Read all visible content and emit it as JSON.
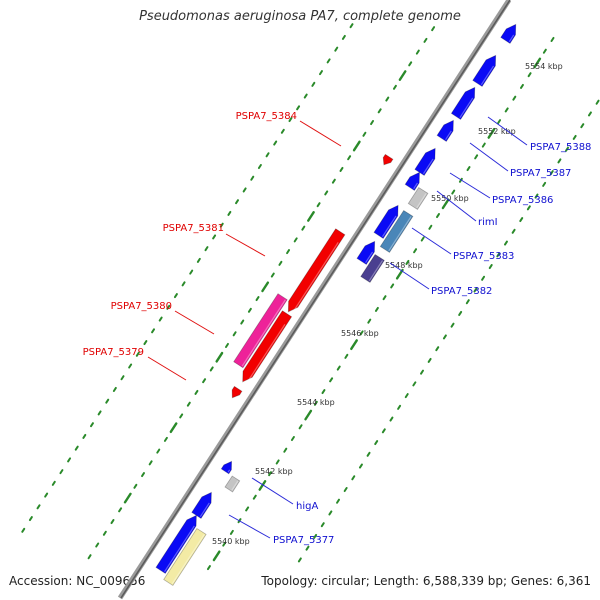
{
  "title": "Pseudomonas aeruginosa PA7, complete genome",
  "accession": "Accession: NC_009656",
  "summary": "Topology: circular; Length: 6,588,339 bp; Genes: 6,361",
  "colors": {
    "backbone": "#888888",
    "forward_gene": "#0a0af5",
    "reverse_gene": "#f20000",
    "forward_label": "#1010d0",
    "reverse_label": "#e00000",
    "tick": "#2a8a2a",
    "grey_gene": "#c4c4c4",
    "steel_gene": "#4a86b8",
    "purple_gene": "#4a3f90",
    "magenta_gene": "#ee2299",
    "yellow_gene": "#f3eba5"
  },
  "scale_labels": [
    "5554 kbp",
    "5552 kbp",
    "5550 kbp",
    "5548 kbp",
    "5546 kbp",
    "5544 kbp",
    "5542 kbp",
    "5540 kbp"
  ],
  "gene_labels": {
    "forward": [
      "PSPA7_5388",
      "PSPA7_5387",
      "PSPA7_5386",
      "rimI",
      "PSPA7_5383",
      "PSPA7_5382",
      "higA",
      "PSPA7_5377"
    ],
    "reverse": [
      "PSPA7_5384",
      "PSPA7_5381",
      "PSPA7_5380",
      "PSPA7_5379"
    ]
  }
}
